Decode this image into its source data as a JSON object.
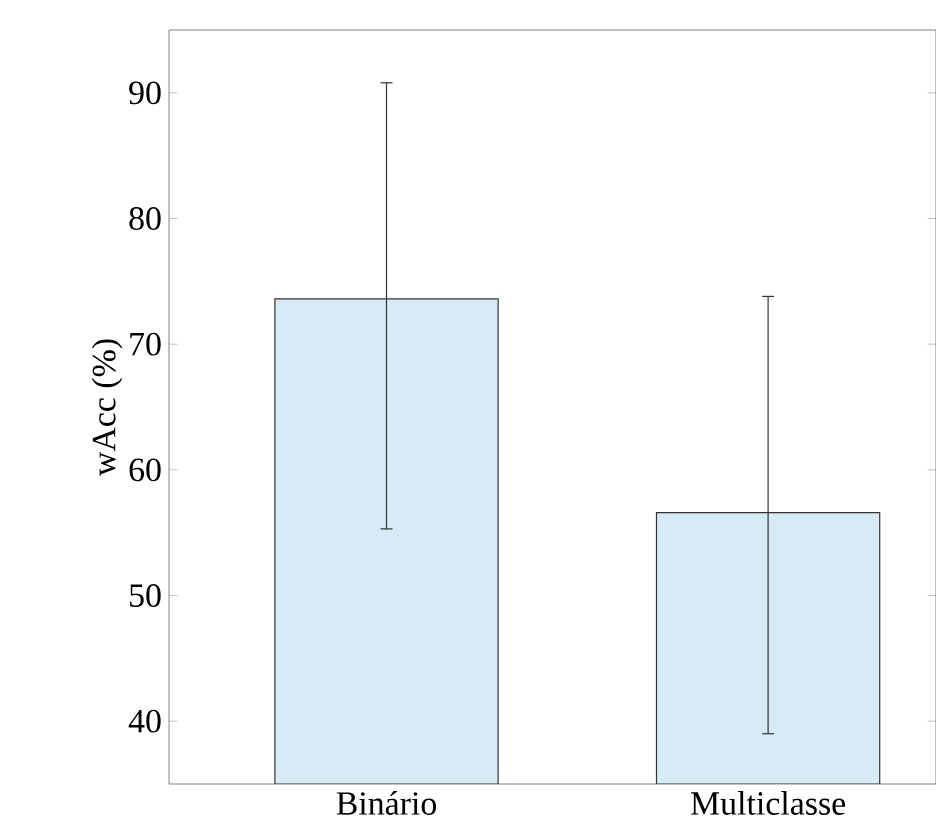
{
  "chart_data": {
    "type": "bar",
    "ylabel": "wAcc (%)",
    "categories": [
      "Binário",
      "Multiclasse"
    ],
    "values": [
      73.6,
      56.6
    ],
    "color": "#d6ebf5",
    "errors": [
      [
        55.3,
        90.8
      ],
      [
        39.0,
        73.8
      ]
    ],
    "ylim": [
      35,
      95
    ],
    "yticks": [
      40,
      50,
      60,
      70,
      80,
      90
    ],
    "grid": false
  }
}
